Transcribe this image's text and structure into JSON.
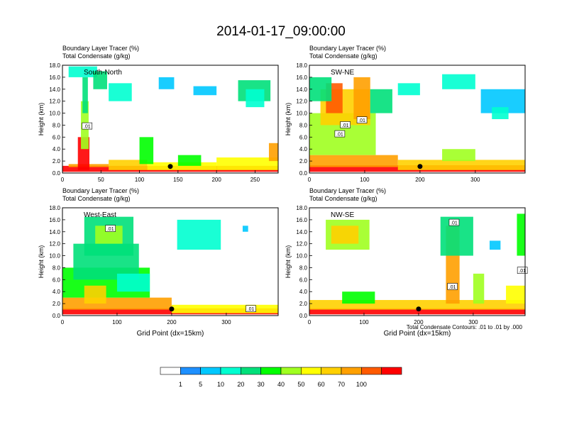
{
  "title": "2014-01-17_09:00:00",
  "colors": {
    "levels": [
      "#ffffff",
      "#1e90ff",
      "#00c8ff",
      "#00ffd0",
      "#00e07a",
      "#00ff00",
      "#a0ff20",
      "#ffff00",
      "#ffd000",
      "#ffa000",
      "#ff5a00",
      "#ff0000"
    ],
    "contour": "#000000",
    "frame": "#000000"
  },
  "chart_data": [
    {
      "type": "heatmap",
      "panel": "South-North",
      "title_line1": "Boundary Layer Tracer    (%)",
      "title_line2": "Total Condensate    (g/kg)",
      "xlabel": "",
      "ylabel": "Height (km)",
      "xlim": [
        0,
        280
      ],
      "ylim": [
        0,
        18
      ],
      "x_ticks": [
        0,
        50,
        100,
        150,
        200,
        250
      ],
      "y_ticks": [
        "0.0",
        "2.0",
        "4.0",
        "6.0",
        "8.0",
        "10.0",
        "12.0",
        "14.0",
        "16.0",
        "18.0"
      ],
      "marker_x": 140,
      "contour_labels": [
        {
          "text": ".01",
          "x": 32,
          "y": 7.8
        }
      ],
      "cells": [
        [
          0,
          0.2,
          280,
          1.2,
          11
        ],
        [
          8,
          1.0,
          60,
          1.5,
          9
        ],
        [
          60,
          0.5,
          110,
          2.2,
          8
        ],
        [
          110,
          0.5,
          200,
          1.8,
          7
        ],
        [
          200,
          0.5,
          280,
          2.6,
          7
        ],
        [
          20,
          0.5,
          35,
          6,
          11
        ],
        [
          24,
          4,
          34,
          12,
          6
        ],
        [
          26,
          10,
          33,
          16,
          4
        ],
        [
          8,
          16,
          45,
          17.8,
          3
        ],
        [
          40,
          14,
          58,
          17,
          4
        ],
        [
          60,
          12,
          90,
          15,
          3
        ],
        [
          125,
          14,
          145,
          16,
          2
        ],
        [
          170,
          13,
          200,
          14.5,
          2
        ],
        [
          228,
          12,
          270,
          15.5,
          4
        ],
        [
          238,
          11,
          262,
          14,
          3
        ],
        [
          268,
          2,
          280,
          5,
          9
        ],
        [
          100,
          1.5,
          118,
          6,
          5
        ],
        [
          150,
          1.2,
          180,
          3,
          5
        ]
      ],
      "markers_2d": [
        [
          32,
          7.8
        ]
      ]
    },
    {
      "type": "heatmap",
      "panel": "SW-NE",
      "title_line1": "Boundary Layer Tracer    (%)",
      "title_line2": "Total Condensate    (g/kg)",
      "xlabel": "",
      "ylabel": "Height (km)",
      "xlim": [
        0,
        390
      ],
      "ylim": [
        0,
        18
      ],
      "x_ticks": [
        0,
        100,
        200,
        300
      ],
      "y_ticks": [
        "0.0",
        "2.0",
        "4.0",
        "6.0",
        "8.0",
        "10.0",
        "12.0",
        "14.0",
        "16.0",
        "18.0"
      ],
      "marker_x": 200,
      "contour_labels": [
        {
          "text": ".01",
          "x": 95,
          "y": 8.8
        },
        {
          "text": ".01",
          "x": 65,
          "y": 8
        },
        {
          "text": ".01",
          "x": 55,
          "y": 6.5
        }
      ],
      "cells": [
        [
          0,
          0.2,
          390,
          1.3,
          11
        ],
        [
          0,
          1.0,
          160,
          3,
          9
        ],
        [
          160,
          0.5,
          390,
          2.2,
          8
        ],
        [
          0,
          3,
          120,
          10,
          6
        ],
        [
          20,
          8,
          110,
          14,
          8
        ],
        [
          30,
          10,
          60,
          15,
          10
        ],
        [
          80,
          9,
          110,
          16,
          9
        ],
        [
          0,
          12,
          40,
          16,
          4
        ],
        [
          110,
          10,
          150,
          14,
          4
        ],
        [
          160,
          13,
          200,
          15,
          3
        ],
        [
          240,
          14,
          300,
          16.5,
          3
        ],
        [
          310,
          10,
          390,
          14,
          2
        ],
        [
          330,
          9,
          360,
          11,
          3
        ],
        [
          240,
          2,
          300,
          4,
          6
        ]
      ],
      "markers_2d": [
        [
          95,
          8.8
        ],
        [
          65,
          8
        ],
        [
          55,
          6.5
        ]
      ]
    },
    {
      "type": "heatmap",
      "panel": "West-East",
      "title_line1": "Boundary Layer Tracer    (%)",
      "title_line2": "Total Condensate    (g/kg)",
      "xlabel": "Grid Point (dx=15km)",
      "ylabel": "Height (km)",
      "xlim": [
        0,
        395
      ],
      "ylim": [
        0,
        18
      ],
      "x_ticks": [
        0,
        100,
        200,
        300
      ],
      "y_ticks": [
        "0.0",
        "2.0",
        "4.0",
        "6.0",
        "8.0",
        "10.0",
        "12.0",
        "14.0",
        "16.0",
        "18.0"
      ],
      "marker_x": 200,
      "contour_labels": [
        {
          "text": ".01",
          "x": 88,
          "y": 14.5
        },
        {
          "text": ".01",
          "x": 345,
          "y": 1.1
        }
      ],
      "cells": [
        [
          0,
          0.2,
          395,
          1.2,
          11
        ],
        [
          0,
          1.0,
          200,
          3,
          9
        ],
        [
          200,
          0.4,
          395,
          1.8,
          7
        ],
        [
          0,
          3,
          160,
          8,
          5
        ],
        [
          20,
          6,
          140,
          12,
          4
        ],
        [
          40,
          10,
          130,
          16.5,
          4
        ],
        [
          60,
          12,
          110,
          15,
          6
        ],
        [
          100,
          4,
          160,
          7,
          3
        ],
        [
          210,
          11,
          290,
          16,
          3
        ],
        [
          330,
          14,
          340,
          15,
          2
        ],
        [
          40,
          2,
          80,
          5,
          8
        ]
      ],
      "markers_2d": [
        [
          88,
          14.5
        ],
        [
          345,
          1.1
        ]
      ]
    },
    {
      "type": "heatmap",
      "panel": "NW-SE",
      "title_line1": "Boundary Layer Tracer    (%)",
      "title_line2": "Total Condensate    (g/kg)",
      "xlabel": "Grid Point (dx=15km)",
      "ylabel": "Height (km)",
      "xlim": [
        0,
        395
      ],
      "ylim": [
        0,
        18
      ],
      "x_ticks": [
        0,
        100,
        200,
        300
      ],
      "y_ticks": [
        "0.0",
        "2.0",
        "4.0",
        "6.0",
        "8.0",
        "10.0",
        "12.0",
        "14.0",
        "16.0",
        "18.0"
      ],
      "marker_x": 200,
      "contour_labels": [
        {
          "text": ".01",
          "x": 265,
          "y": 15.5
        },
        {
          "text": ".01",
          "x": 262,
          "y": 4.8
        },
        {
          "text": ".01",
          "x": 390,
          "y": 7.5
        }
      ],
      "cells": [
        [
          0,
          0.2,
          395,
          1.2,
          11
        ],
        [
          0,
          1.0,
          395,
          2.6,
          8
        ],
        [
          30,
          11,
          110,
          16,
          6
        ],
        [
          40,
          12,
          90,
          15,
          8
        ],
        [
          250,
          2,
          275,
          15,
          9
        ],
        [
          240,
          10,
          300,
          16.5,
          4
        ],
        [
          300,
          2,
          320,
          7,
          6
        ],
        [
          360,
          2,
          395,
          5,
          7
        ],
        [
          380,
          10,
          395,
          17,
          5
        ],
        [
          60,
          2,
          120,
          4,
          5
        ],
        [
          330,
          11,
          350,
          12.5,
          2
        ]
      ],
      "markers_2d": [
        [
          265,
          15.5
        ],
        [
          262,
          4.8
        ],
        [
          390,
          7.5
        ]
      ]
    }
  ],
  "footnote": "Total Condensate Contours: .01 to .01 by .000",
  "colorbar": {
    "labels": [
      "1",
      "5",
      "10",
      "20",
      "30",
      "40",
      "50",
      "60",
      "70",
      "100"
    ]
  }
}
